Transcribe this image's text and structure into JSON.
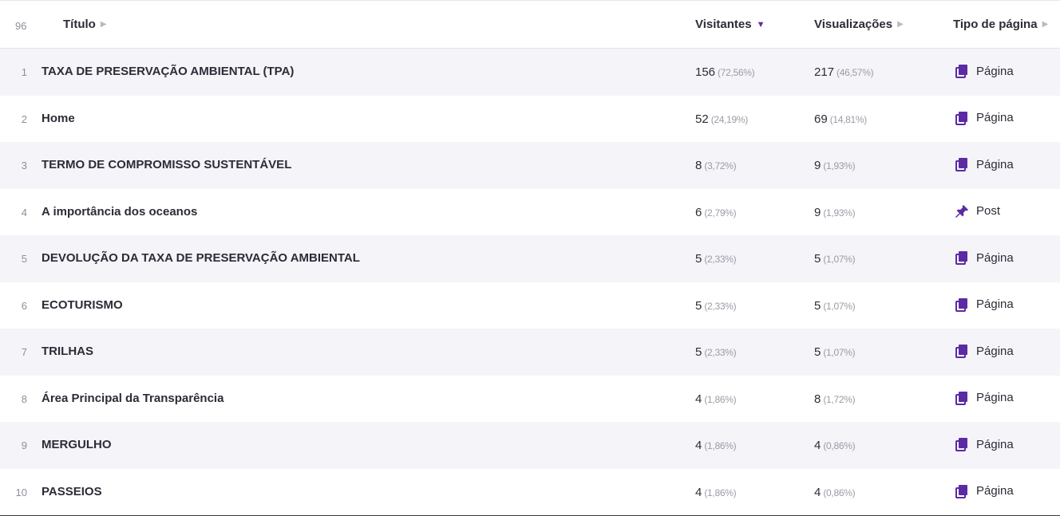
{
  "header": {
    "count": "96",
    "col_title": "Título",
    "col_visitors": "Visitantes",
    "col_views": "Visualizações",
    "col_type": "Tipo de página"
  },
  "colors": {
    "accent": "#5b2ba3",
    "row_shade": "#f5f4f9"
  },
  "rows": [
    {
      "n": "1",
      "title": "TAXA DE PRESERVAÇÃO AMBIENTAL (TPA)",
      "visitors": "156",
      "visitors_pct": "(72,56%)",
      "views": "217",
      "views_pct": "(46,57%)",
      "type": "Página",
      "icon": "page-icon"
    },
    {
      "n": "2",
      "title": "Home",
      "visitors": "52",
      "visitors_pct": "(24,19%)",
      "views": "69",
      "views_pct": "(14,81%)",
      "type": "Página",
      "icon": "page-icon"
    },
    {
      "n": "3",
      "title": "TERMO DE COMPROMISSO SUSTENTÁVEL",
      "visitors": "8",
      "visitors_pct": "(3,72%)",
      "views": "9",
      "views_pct": "(1,93%)",
      "type": "Página",
      "icon": "page-icon"
    },
    {
      "n": "4",
      "title": "A importância dos oceanos",
      "visitors": "6",
      "visitors_pct": "(2,79%)",
      "views": "9",
      "views_pct": "(1,93%)",
      "type": "Post",
      "icon": "pin-icon"
    },
    {
      "n": "5",
      "title": "DEVOLUÇÃO DA TAXA DE PRESERVAÇÃO AMBIENTAL",
      "visitors": "5",
      "visitors_pct": "(2,33%)",
      "views": "5",
      "views_pct": "(1,07%)",
      "type": "Página",
      "icon": "page-icon"
    },
    {
      "n": "6",
      "title": "ECOTURISMO",
      "visitors": "5",
      "visitors_pct": "(2,33%)",
      "views": "5",
      "views_pct": "(1,07%)",
      "type": "Página",
      "icon": "page-icon"
    },
    {
      "n": "7",
      "title": "TRILHAS",
      "visitors": "5",
      "visitors_pct": "(2,33%)",
      "views": "5",
      "views_pct": "(1,07%)",
      "type": "Página",
      "icon": "page-icon"
    },
    {
      "n": "8",
      "title": "Área Principal da Transparência",
      "visitors": "4",
      "visitors_pct": "(1,86%)",
      "views": "8",
      "views_pct": "(1,72%)",
      "type": "Página",
      "icon": "page-icon"
    },
    {
      "n": "9",
      "title": "MERGULHO",
      "visitors": "4",
      "visitors_pct": "(1,86%)",
      "views": "4",
      "views_pct": "(0,86%)",
      "type": "Página",
      "icon": "page-icon"
    },
    {
      "n": "10",
      "title": "PASSEIOS",
      "visitors": "4",
      "visitors_pct": "(1,86%)",
      "views": "4",
      "views_pct": "(0,86%)",
      "type": "Página",
      "icon": "page-icon"
    }
  ]
}
